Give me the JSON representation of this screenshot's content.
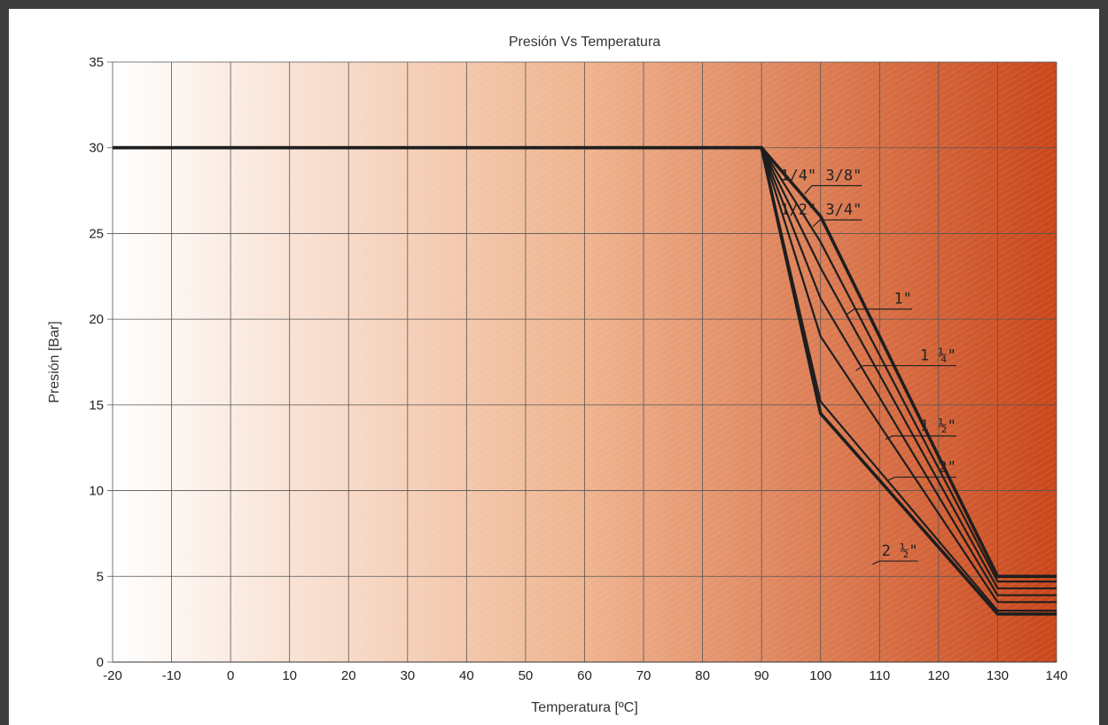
{
  "chart_data": {
    "type": "line",
    "title": "Presión Vs Temperatura",
    "xlabel": "Temperatura [ºC]",
    "ylabel": "Presión [Bar]",
    "xlim": [
      -20,
      140
    ],
    "ylim": [
      0,
      35
    ],
    "xticks": [
      -20,
      -10,
      0,
      10,
      20,
      30,
      40,
      50,
      60,
      70,
      80,
      90,
      100,
      110,
      120,
      130,
      140
    ],
    "yticks": [
      0,
      5,
      10,
      15,
      20,
      25,
      30,
      35
    ],
    "grid": true,
    "background_gradient": [
      "#ffffff",
      "#efb48f",
      "#c9461a"
    ],
    "line_color": "#1e1e1e",
    "series": [
      {
        "name": "1/4\"  3/8\"",
        "x": [
          -20,
          90,
          100,
          130,
          140
        ],
        "y": [
          30,
          30,
          26,
          5,
          5
        ]
      },
      {
        "name": "1/2\"  3/4\"",
        "x": [
          -20,
          90,
          100,
          130,
          140
        ],
        "y": [
          30,
          30,
          24.5,
          4.7,
          4.7
        ]
      },
      {
        "name": "1\"",
        "x": [
          -20,
          90,
          100,
          130,
          140
        ],
        "y": [
          30,
          30,
          23,
          4.3,
          4.3
        ]
      },
      {
        "name": "1 ¼\"",
        "x": [
          -20,
          90,
          100,
          130,
          140
        ],
        "y": [
          30,
          30,
          21.2,
          3.9,
          3.9
        ]
      },
      {
        "name": "1 ½\"",
        "x": [
          -20,
          90,
          100,
          130,
          140
        ],
        "y": [
          30,
          30,
          19,
          3.5,
          3.5
        ]
      },
      {
        "name": "2\"",
        "x": [
          -20,
          90,
          100,
          130,
          140
        ],
        "y": [
          30,
          30,
          15.2,
          3.0,
          3.0
        ]
      },
      {
        "name": "2 ½\"",
        "x": [
          -20,
          90,
          100,
          130,
          140
        ],
        "y": [
          30,
          30,
          14.5,
          2.8,
          2.8
        ]
      }
    ],
    "annotations": [
      {
        "text": "1/4\"  3/8\"",
        "x": 107,
        "y": 28.1,
        "leader_to": [
          97.3,
          27.3
        ]
      },
      {
        "text": "1/2\"  3/4\"",
        "x": 107,
        "y": 26.1,
        "leader_to": [
          98.7,
          25.4
        ]
      },
      {
        "text": "1\"",
        "x": 115.5,
        "y": 20.9,
        "leader_to": [
          104.5,
          20.3
        ]
      },
      {
        "text": "1 ¼\"",
        "x": 123,
        "y": 17.6,
        "leader_to": [
          106,
          17.0
        ]
      },
      {
        "text": "1 ½\"",
        "x": 123,
        "y": 13.5,
        "leader_to": [
          111,
          13.0
        ]
      },
      {
        "text": "2\"",
        "x": 123,
        "y": 11.1,
        "leader_to": [
          111.4,
          10.6
        ]
      },
      {
        "text": "2 ½\"",
        "x": 116.5,
        "y": 6.2,
        "leader_to": [
          108.8,
          5.7
        ]
      }
    ]
  }
}
